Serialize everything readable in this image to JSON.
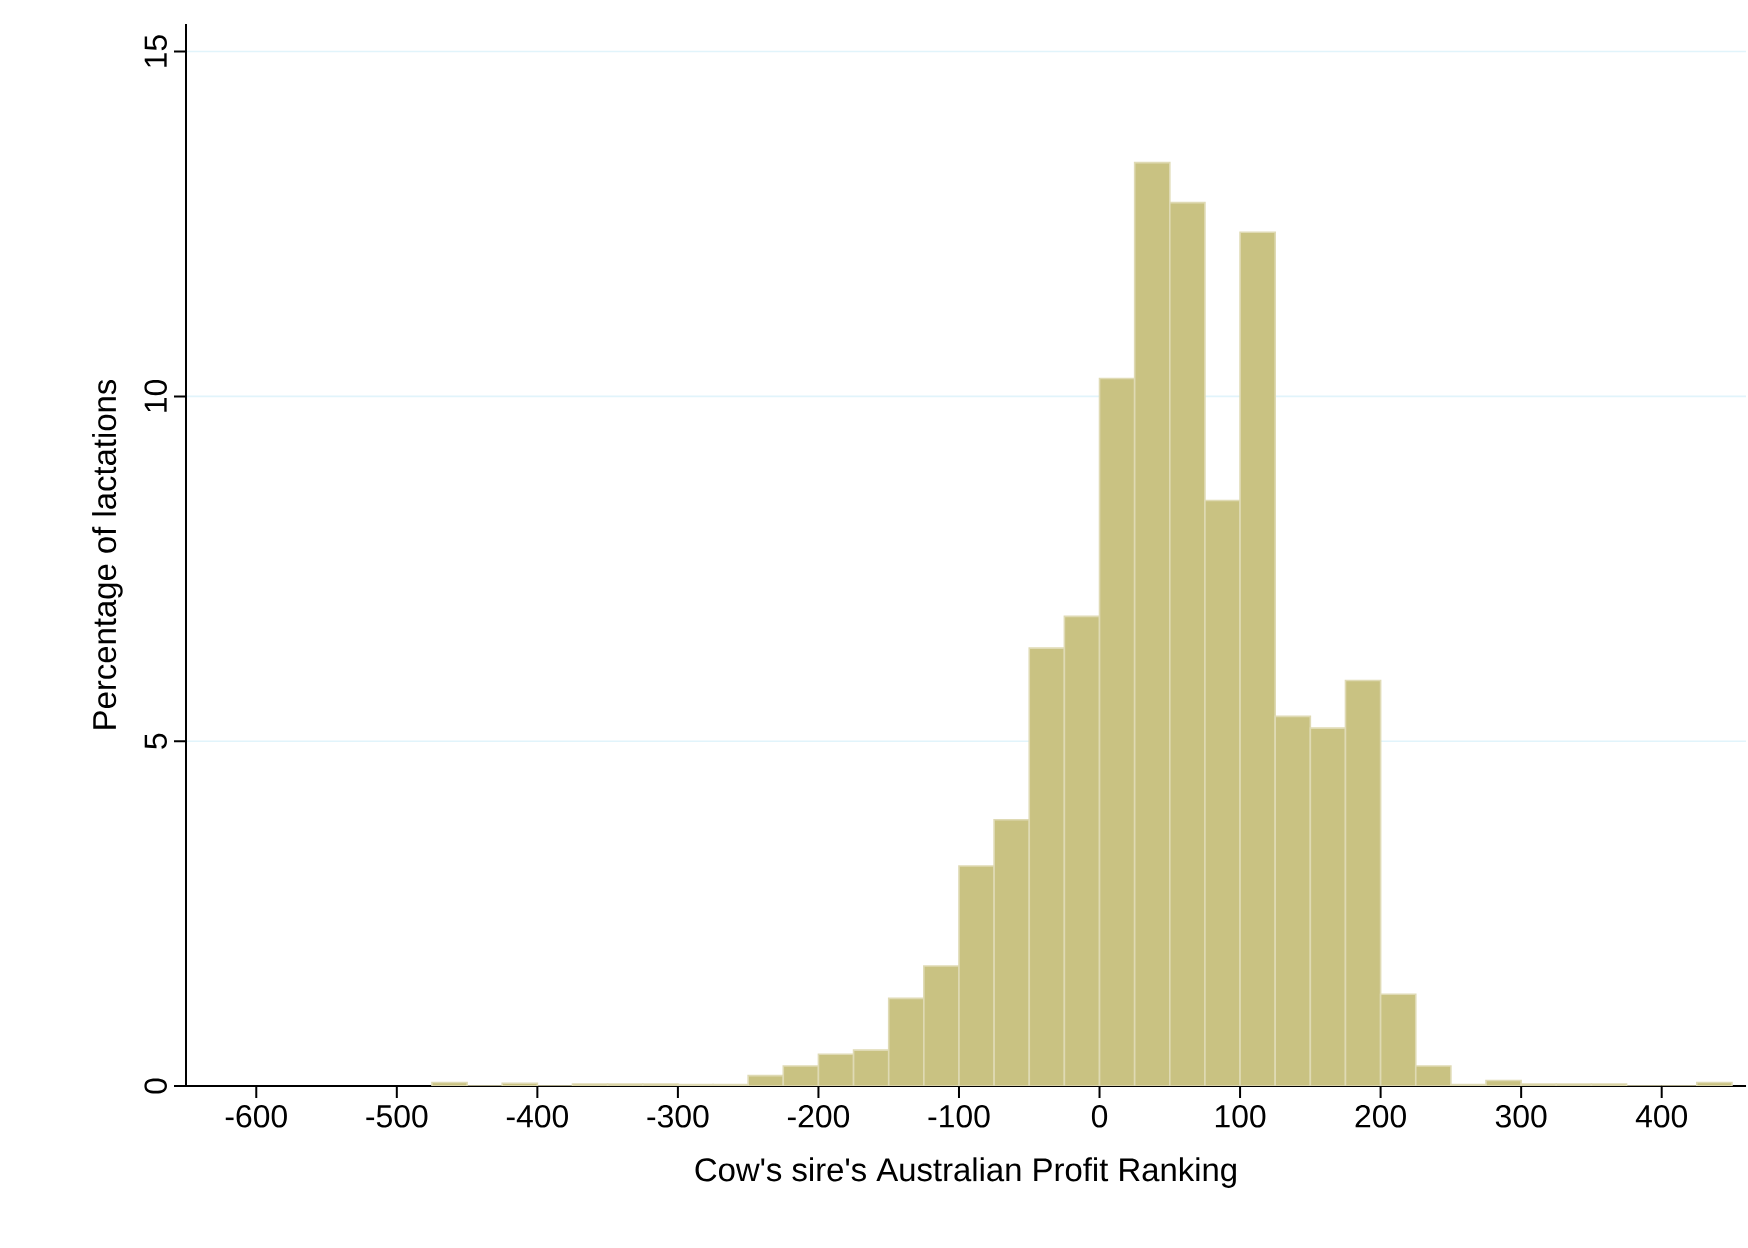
{
  "chart_data": {
    "type": "histogram",
    "xlabel": "Cow's sire's Australian Profit Ranking",
    "ylabel": "Percentage of lactations",
    "bins": [
      -475,
      -450,
      -425,
      -400,
      -375,
      -350,
      -325,
      -300,
      -275,
      -250,
      -225,
      -200,
      -175,
      -150,
      -125,
      -100,
      -75,
      -50,
      -25,
      0,
      25,
      50,
      75,
      100,
      125,
      150,
      175,
      200,
      225,
      250,
      275,
      300,
      325,
      350,
      375,
      400,
      425,
      450
    ],
    "values": [
      0.05,
      0,
      0.04,
      0,
      0.03,
      0.03,
      0.03,
      0.02,
      0.02,
      0.15,
      0.29,
      0.46,
      0.52,
      1.27,
      1.74,
      3.19,
      3.86,
      6.35,
      6.81,
      10.26,
      13.39,
      12.81,
      8.49,
      12.38,
      5.36,
      5.19,
      5.88,
      1.33,
      0.29,
      0.02,
      0.08,
      0.03,
      0.03,
      0.03,
      0,
      0,
      0.05
    ],
    "color": "#c9c282",
    "xlim": [
      -650,
      460
    ],
    "ylim": [
      0,
      15.4
    ],
    "xticks": [
      -600,
      -500,
      -400,
      -300,
      -200,
      -100,
      0,
      100,
      200,
      300,
      400
    ],
    "yticks": [
      0,
      5,
      10,
      15
    ],
    "grid": "y"
  }
}
